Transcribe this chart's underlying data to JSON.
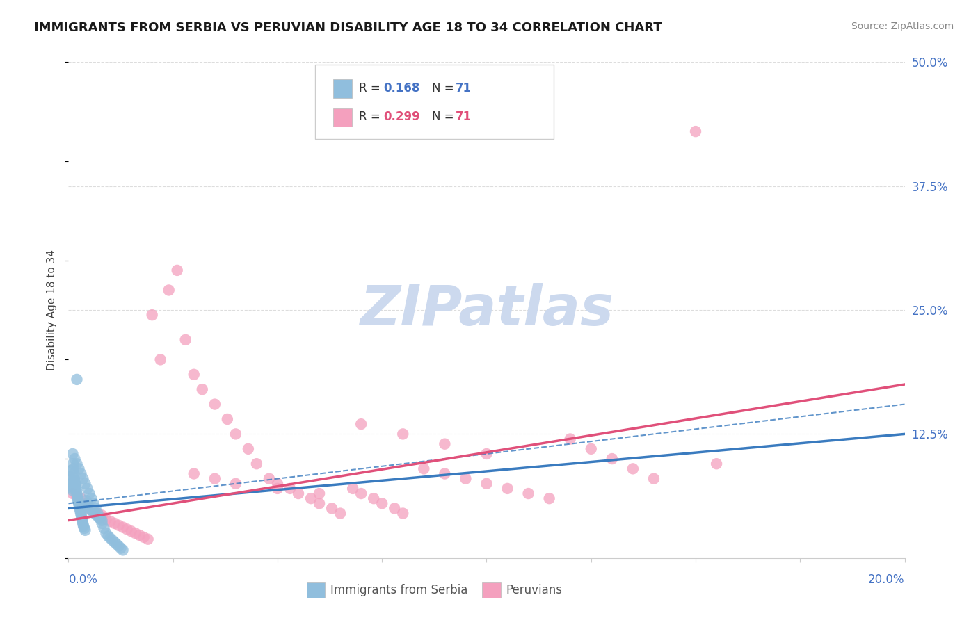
{
  "title": "IMMIGRANTS FROM SERBIA VS PERUVIAN DISABILITY AGE 18 TO 34 CORRELATION CHART",
  "source": "Source: ZipAtlas.com",
  "ylabel": "Disability Age 18 to 34",
  "legend_r_blue": "0.168",
  "legend_n_blue": "71",
  "legend_r_pink": "0.299",
  "legend_n_pink": "71",
  "legend_label_blue": "Immigrants from Serbia",
  "legend_label_pink": "Peruvians",
  "color_blue": "#90bedd",
  "color_pink": "#f4a0be",
  "color_blue_line": "#3a7bbf",
  "color_pink_line": "#e0507a",
  "watermark_color": "#ccd9ee",
  "title_color": "#1a1a1a",
  "source_color": "#888888",
  "axis_label_color": "#4472c4",
  "ylabel_color": "#444444",
  "grid_color": "#dddddd",
  "xlim": [
    0.0,
    0.2
  ],
  "ylim": [
    0.0,
    0.5
  ],
  "yticks": [
    0.0,
    0.125,
    0.25,
    0.375,
    0.5
  ],
  "ytick_labels": [
    "",
    "12.5%",
    "25.0%",
    "37.5%",
    "50.0%"
  ],
  "serbia_x": [
    0.0003,
    0.0005,
    0.0006,
    0.0007,
    0.0008,
    0.0009,
    0.001,
    0.0011,
    0.0012,
    0.0013,
    0.0014,
    0.0015,
    0.0016,
    0.0017,
    0.0018,
    0.0019,
    0.002,
    0.0021,
    0.0022,
    0.0023,
    0.0024,
    0.0025,
    0.0026,
    0.0027,
    0.0028,
    0.0029,
    0.003,
    0.0031,
    0.0032,
    0.0033,
    0.0034,
    0.0035,
    0.0036,
    0.0038,
    0.004,
    0.0042,
    0.0045,
    0.0048,
    0.005,
    0.0055,
    0.006,
    0.0065,
    0.007,
    0.0075,
    0.008,
    0.001,
    0.0015,
    0.002,
    0.0025,
    0.003,
    0.0035,
    0.004,
    0.0045,
    0.005,
    0.0055,
    0.006,
    0.0065,
    0.007,
    0.0075,
    0.008,
    0.0085,
    0.009,
    0.0095,
    0.01,
    0.0105,
    0.011,
    0.0115,
    0.012,
    0.0125,
    0.013,
    0.002
  ],
  "serbia_y": [
    0.082,
    0.088,
    0.079,
    0.075,
    0.072,
    0.07,
    0.068,
    0.095,
    0.09,
    0.085,
    0.08,
    0.078,
    0.075,
    0.072,
    0.07,
    0.068,
    0.065,
    0.063,
    0.06,
    0.058,
    0.056,
    0.054,
    0.052,
    0.05,
    0.048,
    0.046,
    0.044,
    0.042,
    0.04,
    0.038,
    0.036,
    0.034,
    0.032,
    0.03,
    0.028,
    0.058,
    0.055,
    0.052,
    0.05,
    0.048,
    0.046,
    0.044,
    0.042,
    0.04,
    0.038,
    0.105,
    0.1,
    0.095,
    0.09,
    0.085,
    0.08,
    0.075,
    0.07,
    0.065,
    0.06,
    0.055,
    0.05,
    0.045,
    0.04,
    0.035,
    0.03,
    0.025,
    0.022,
    0.02,
    0.018,
    0.016,
    0.014,
    0.012,
    0.01,
    0.008,
    0.18
  ],
  "peru_x": [
    0.001,
    0.002,
    0.003,
    0.003,
    0.004,
    0.005,
    0.005,
    0.006,
    0.007,
    0.008,
    0.008,
    0.009,
    0.01,
    0.011,
    0.012,
    0.013,
    0.014,
    0.015,
    0.016,
    0.017,
    0.018,
    0.019,
    0.02,
    0.022,
    0.024,
    0.026,
    0.028,
    0.03,
    0.032,
    0.035,
    0.038,
    0.04,
    0.043,
    0.045,
    0.048,
    0.05,
    0.053,
    0.055,
    0.058,
    0.06,
    0.063,
    0.065,
    0.068,
    0.07,
    0.073,
    0.075,
    0.078,
    0.08,
    0.085,
    0.09,
    0.095,
    0.1,
    0.105,
    0.11,
    0.115,
    0.12,
    0.125,
    0.13,
    0.135,
    0.14,
    0.03,
    0.035,
    0.04,
    0.05,
    0.06,
    0.07,
    0.08,
    0.09,
    0.1,
    0.155,
    0.15
  ],
  "peru_y": [
    0.065,
    0.062,
    0.06,
    0.055,
    0.053,
    0.051,
    0.049,
    0.047,
    0.045,
    0.043,
    0.041,
    0.039,
    0.037,
    0.035,
    0.033,
    0.031,
    0.029,
    0.027,
    0.025,
    0.023,
    0.021,
    0.019,
    0.245,
    0.2,
    0.27,
    0.29,
    0.22,
    0.185,
    0.17,
    0.155,
    0.14,
    0.125,
    0.11,
    0.095,
    0.08,
    0.075,
    0.07,
    0.065,
    0.06,
    0.055,
    0.05,
    0.045,
    0.07,
    0.065,
    0.06,
    0.055,
    0.05,
    0.045,
    0.09,
    0.085,
    0.08,
    0.075,
    0.07,
    0.065,
    0.06,
    0.12,
    0.11,
    0.1,
    0.09,
    0.08,
    0.085,
    0.08,
    0.075,
    0.07,
    0.065,
    0.135,
    0.125,
    0.115,
    0.105,
    0.095,
    0.43
  ]
}
